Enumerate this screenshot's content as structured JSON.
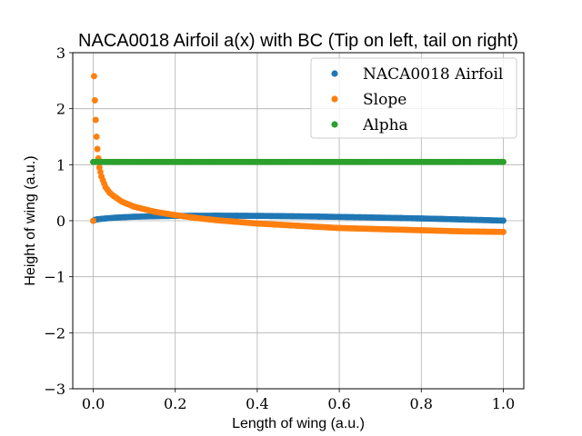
{
  "chart_data": {
    "type": "scatter",
    "title": "NACA0018 Airfoil a(x) with BC (Tip on left, tail on right)",
    "xlabel": "Length of wing (a.u.)",
    "ylabel": "Height of wing (a.u.)",
    "xlim": [
      -0.05,
      1.05
    ],
    "ylim": [
      -3,
      3
    ],
    "xticks": [
      0.0,
      0.2,
      0.4,
      0.6,
      0.8,
      1.0
    ],
    "xtick_labels": [
      "0.0",
      "0.2",
      "0.4",
      "0.6",
      "0.8",
      "1.0"
    ],
    "yticks": [
      -3,
      -2,
      -1,
      0,
      1,
      2,
      3
    ],
    "ytick_labels": [
      "−3",
      "−2",
      "−1",
      "0",
      "1",
      "2",
      "3"
    ],
    "grid": true,
    "legend_position": "top-right",
    "series": [
      {
        "name": "NACA0018 Airfoil",
        "color": "#1f77b4",
        "x": [
          0.0,
          0.005,
          0.01,
          0.02,
          0.03,
          0.05,
          0.075,
          0.1,
          0.15,
          0.2,
          0.25,
          0.3,
          0.35,
          0.4,
          0.45,
          0.5,
          0.55,
          0.6,
          0.65,
          0.7,
          0.75,
          0.8,
          0.85,
          0.9,
          0.95,
          1.0
        ],
        "y": [
          0.0,
          0.018,
          0.025,
          0.034,
          0.041,
          0.053,
          0.063,
          0.071,
          0.081,
          0.086,
          0.089,
          0.09,
          0.089,
          0.087,
          0.083,
          0.079,
          0.074,
          0.068,
          0.062,
          0.055,
          0.048,
          0.04,
          0.032,
          0.022,
          0.012,
          0.002
        ]
      },
      {
        "name": "Slope",
        "color": "#ff7f0e",
        "x": [
          0.0,
          0.002,
          0.004,
          0.006,
          0.008,
          0.01,
          0.015,
          0.02,
          0.03,
          0.04,
          0.05,
          0.07,
          0.1,
          0.15,
          0.2,
          0.25,
          0.3,
          0.4,
          0.5,
          0.6,
          0.7,
          0.8,
          0.9,
          1.0
        ],
        "y": [
          0.0,
          2.58,
          2.15,
          1.8,
          1.5,
          1.28,
          0.95,
          0.79,
          0.6,
          0.5,
          0.44,
          0.34,
          0.25,
          0.16,
          0.1,
          0.05,
          0.01,
          -0.05,
          -0.09,
          -0.13,
          -0.15,
          -0.17,
          -0.19,
          -0.2
        ]
      },
      {
        "name": "Alpha",
        "color": "#2ca02c",
        "x": [
          0.0,
          0.01,
          0.02,
          0.05,
          0.1,
          0.2,
          0.3,
          0.4,
          0.5,
          0.6,
          0.7,
          0.8,
          0.9,
          1.0
        ],
        "y": [
          1.05,
          1.05,
          1.05,
          1.05,
          1.05,
          1.05,
          1.05,
          1.05,
          1.05,
          1.05,
          1.05,
          1.05,
          1.05,
          1.05
        ]
      }
    ]
  }
}
